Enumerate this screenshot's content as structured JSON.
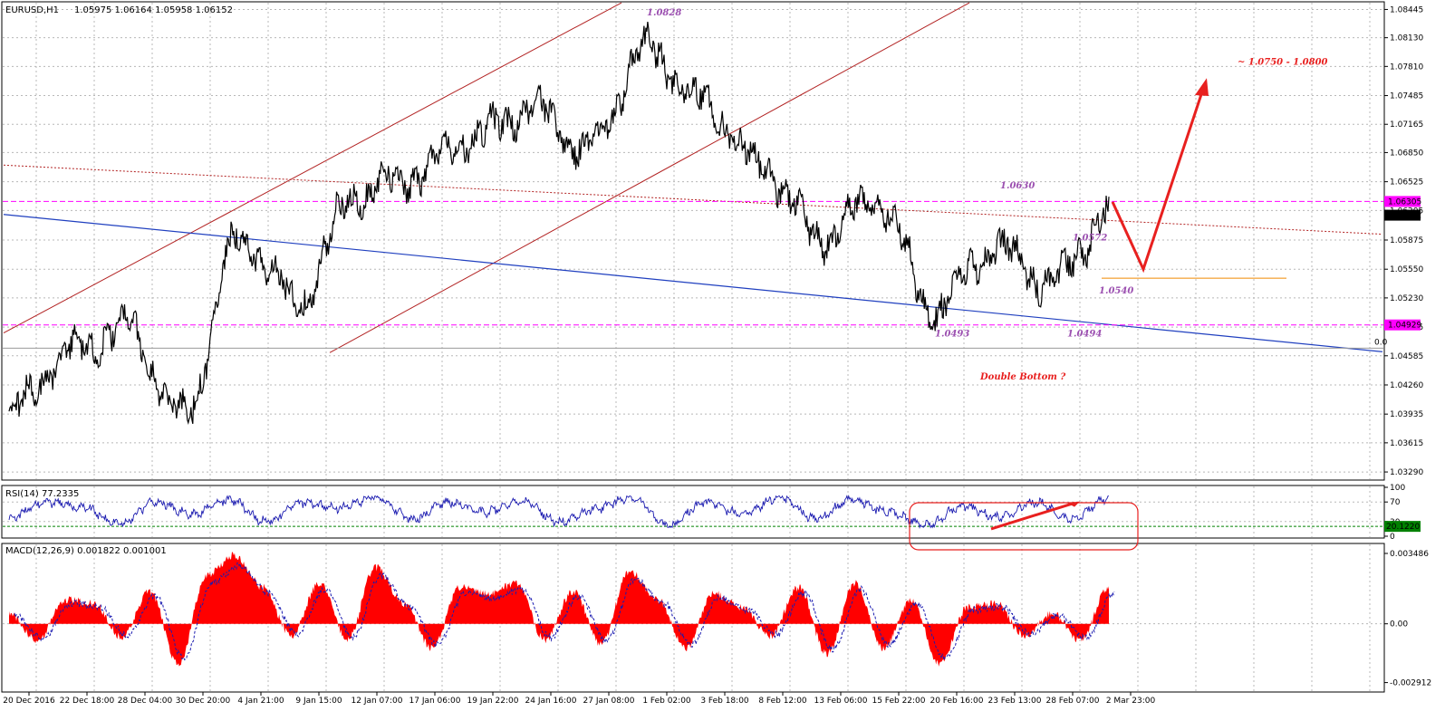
{
  "chart_data": [
    {
      "type": "line",
      "panel": "price",
      "title": "EURUSD,H1",
      "ohlc_header": "1.05975 1.06164 1.05958 1.06152",
      "y_ticks": [
        "1.08445",
        "1.08130",
        "1.07810",
        "1.07485",
        "1.07165",
        "1.06850",
        "1.06525",
        "1.06205",
        "1.05875",
        "1.05550",
        "1.05230",
        "1.04905",
        "1.04585",
        "1.04260",
        "1.03935",
        "1.03615",
        "1.03290"
      ],
      "ylim": [
        1.0322,
        1.0851
      ],
      "grid": true,
      "series": [
        {
          "x": [
            "20 Dec 2016",
            "22 Dec 18:00",
            "28 Dec 04:00",
            "30 Dec 20:00",
            "4 Jan 21:00",
            "9 Jan 15:00",
            "12 Jan 07:00",
            "17 Jan 06:00",
            "19 Jan 22:00",
            "24 Jan 16:00",
            "27 Jan 08:00",
            "1 Feb 02:00",
            "3 Feb 18:00",
            "8 Feb 12:00",
            "13 Feb 06:00",
            "15 Feb 22:00",
            "20 Feb 16:00",
            "23 Feb 13:00",
            "28 Feb 07:00",
            "2 Mar 23:00"
          ],
          "values": [
            1.0395,
            1.046,
            1.049,
            1.039,
            1.059,
            1.052,
            1.064,
            1.066,
            1.07,
            1.0735,
            1.069,
            1.08,
            1.074,
            1.067,
            1.059,
            1.063,
            1.051,
            1.058,
            1.054,
            1.0615
          ]
        }
      ],
      "price_labels": [
        {
          "value": "1.06305",
          "color": "#ff00ff"
        },
        {
          "value": "1.06152",
          "color": "#000000"
        },
        {
          "value": "1.04929",
          "color": "#ff00ff"
        }
      ],
      "annotations": [
        "1.0828",
        "1.0630",
        "1.0572",
        "1.0540",
        "1.0493",
        "1.0494",
        "~ 1.0750 - 1.0800",
        "Double Bottom ?"
      ],
      "edge_label": "0.0",
      "colors": {
        "price": "#000000",
        "up_channel": "#b22222",
        "support": "#1f3fbf",
        "level": "#ff00ff",
        "target": "#e8201f",
        "orange_line": "#f08a00"
      }
    },
    {
      "type": "line",
      "panel": "rsi",
      "title": "RSI(14) 77.2335",
      "y_ticks": [
        "100",
        "70",
        "30",
        "0"
      ],
      "ylim": [
        0,
        100
      ],
      "level_label": "20.1220",
      "series": [
        {
          "values": [
            38,
            70,
            60,
            25,
            70,
            45,
            75,
            30,
            68,
            58,
            80,
            35,
            70,
            50,
            72,
            30,
            55,
            78,
            20,
            70,
            45,
            80,
            35,
            75,
            50,
            22,
            60,
            40,
            70,
            35,
            78
          ]
        }
      ],
      "colors": {
        "line": "#1a1ab0",
        "level": "#008000",
        "box": "#e8201f"
      }
    },
    {
      "type": "area",
      "panel": "macd",
      "title": "MACD(12,26,9) 0.001822 0.001001",
      "y_ticks": [
        "0.003486",
        "0.00",
        "-0.002912"
      ],
      "ylim": [
        -0.0032,
        0.0038
      ],
      "series": [
        {
          "name": "",
          "values": [
            0.0005,
            -0.0008,
            0.0012,
            0.001,
            -0.0007,
            0.0016,
            -0.002,
            0.0024,
            0.0034,
            0.0018,
            -0.0006,
            0.002,
            -0.0008,
            0.0028,
            0.001,
            -0.0012,
            0.0018,
            0.0015,
            0.002,
            -0.0008,
            0.0016,
            -0.001,
            0.0026,
            0.0012,
            -0.0012,
            0.0015,
            0.0008,
            -0.0006,
            0.0018,
            -0.0015,
            0.002,
            -0.0012,
            0.0012,
            -0.002,
            0.0008,
            0.001,
            -0.0006,
            0.0005,
            -0.0008,
            0.0018
          ]
        }
      ],
      "colors": {
        "hist": "#ff0000",
        "signal": "#1a1ab0"
      }
    }
  ]
}
